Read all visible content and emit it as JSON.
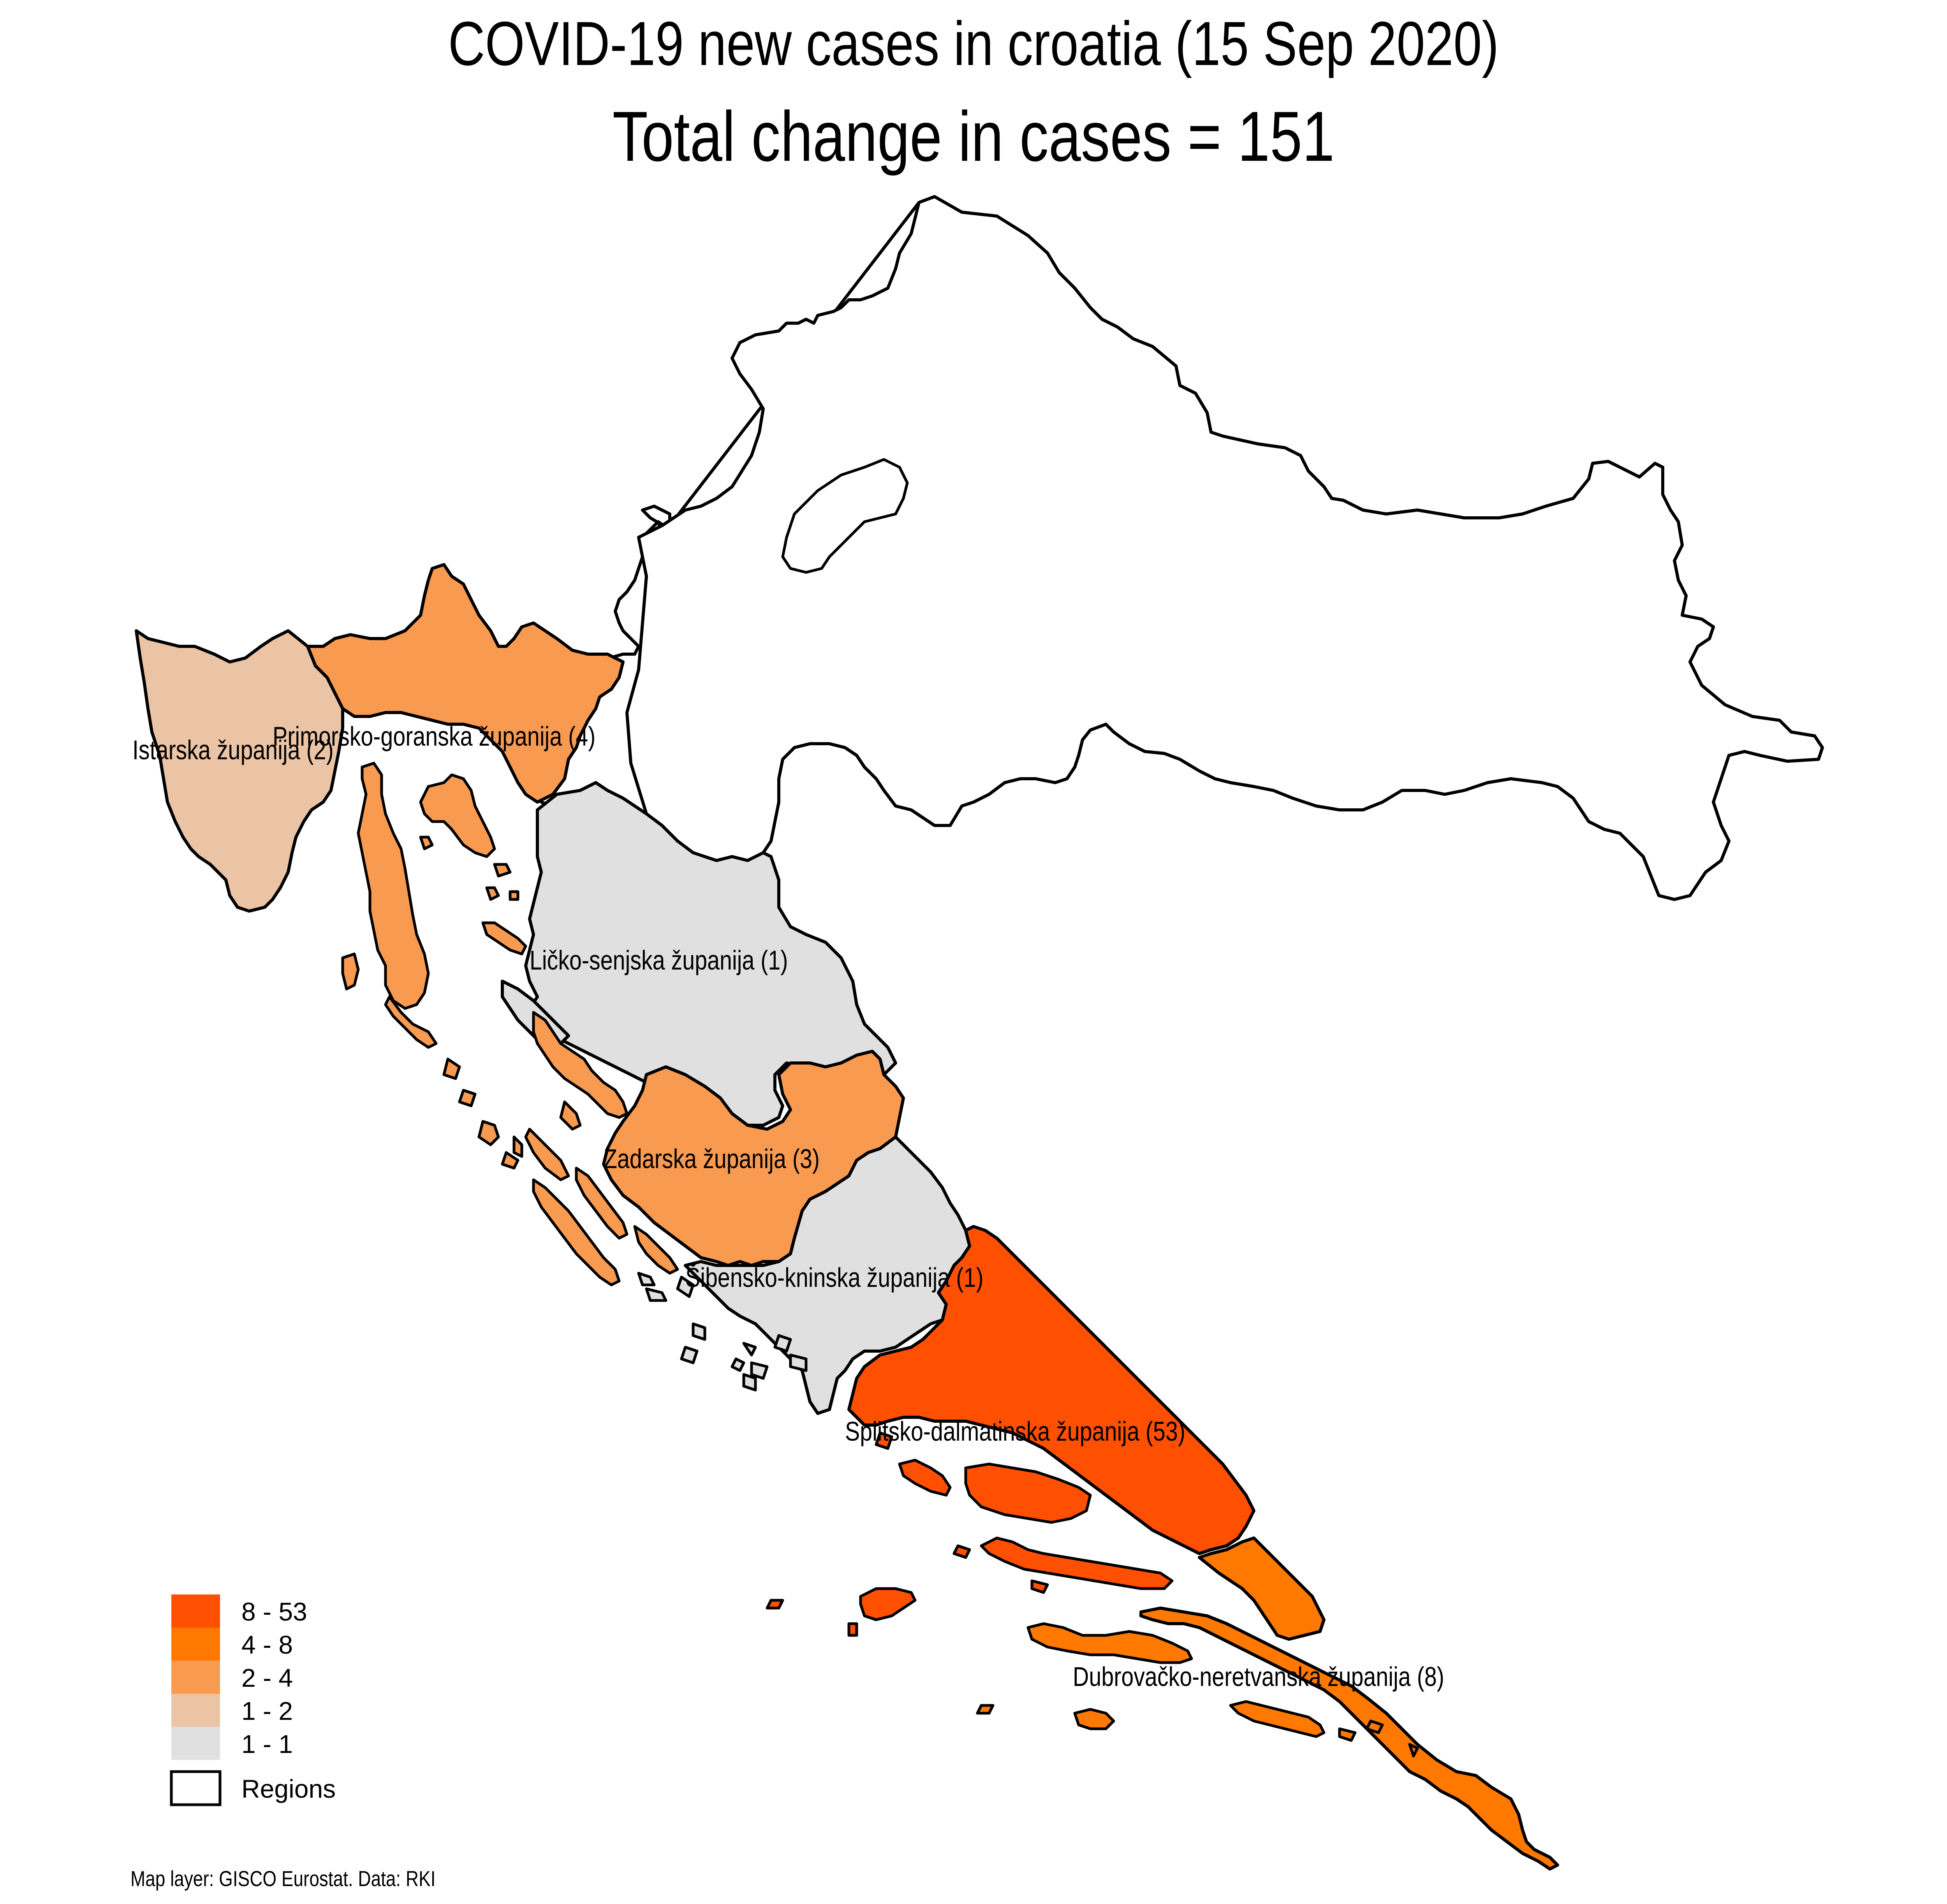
{
  "map": {
    "title": "COVID-19 new cases in croatia (15 Sep 2020)",
    "subtitle": "Total change in cases  = 151",
    "source": "Map layer: GISCO Eurostat. Data: RKI",
    "colors": {
      "c8_53": "#FF4F00",
      "c4_8": "#FF7800",
      "c2_4": "#F89A50",
      "c1_2": "#EBC3A5",
      "c1_1": "#E0E0E0",
      "nodata": "#FFFFFF",
      "border": "#000000"
    },
    "regions": [
      {
        "name": "Istarska županija",
        "label": "Istarska županija (2)",
        "value": 2,
        "bin": "1 - 2"
      },
      {
        "name": "Primorsko-goranska županija",
        "label": "Primorsko-goranska županija (4)",
        "value": 4,
        "bin": "2 - 4"
      },
      {
        "name": "Ličko-senjska županija",
        "label": "Ličko-senjska županija (1)",
        "value": 1,
        "bin": "1 - 1"
      },
      {
        "name": "Zadarska županija",
        "label": "Zadarska županija (3)",
        "value": 3,
        "bin": "2 - 4"
      },
      {
        "name": "Šibensko-kninska županija",
        "label": "Šibensko-kninska županija (1)",
        "value": 1,
        "bin": "1 - 1"
      },
      {
        "name": "Splitsko-dalmatinska županija",
        "label": "Splitsko-dalmatinska županija (53)",
        "value": 53,
        "bin": "8 - 53"
      },
      {
        "name": "Dubrovačko-neretvanska županija",
        "label": "Dubrovačko-neretvanska županija (8)",
        "value": 8,
        "bin": "4 - 8"
      }
    ],
    "legend": [
      {
        "label": "8 - 53",
        "color": "#FF4F00"
      },
      {
        "label": "4 - 8",
        "color": "#FF7800"
      },
      {
        "label": "2 - 4",
        "color": "#F89A50"
      },
      {
        "label": "1 - 2",
        "color": "#EBC3A5"
      },
      {
        "label": "1 - 1",
        "color": "#E0E0E0"
      },
      {
        "label": "Regions",
        "color": "#FFFFFF"
      }
    ]
  }
}
